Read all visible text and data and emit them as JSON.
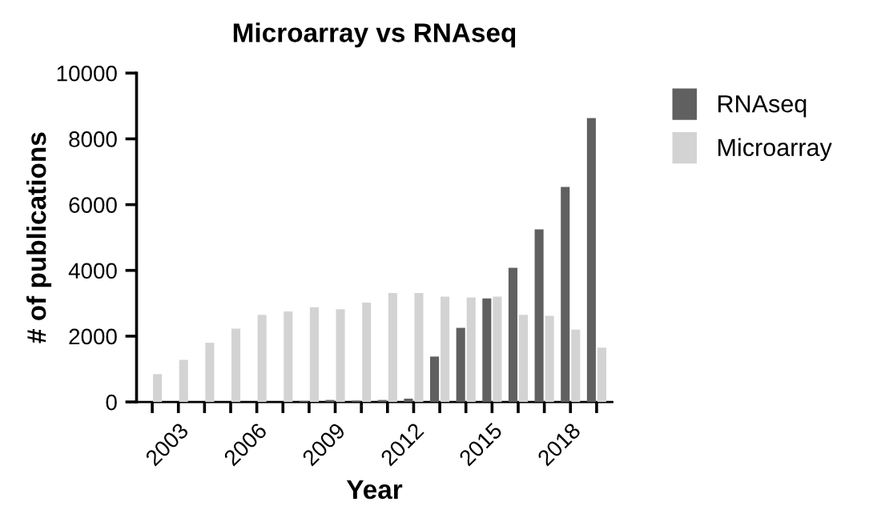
{
  "chart_data": {
    "type": "bar",
    "title": "Microarray vs RNAseq",
    "xlabel": "Year",
    "ylabel": "# of publications",
    "categories": [
      null,
      "2003",
      null,
      null,
      "2006",
      null,
      null,
      "2009",
      null,
      null,
      "2012",
      null,
      null,
      "2015",
      null,
      null,
      "2018",
      null
    ],
    "series": [
      {
        "name": "RNAseq",
        "color": "#606060",
        "values": [
          0,
          0,
          0,
          0,
          0,
          0,
          30,
          60,
          40,
          60,
          100,
          1380,
          2250,
          3150,
          4080,
          5250,
          6540,
          8630
        ]
      },
      {
        "name": "Microarray",
        "color": "#d3d3d3",
        "values": [
          850,
          1280,
          1800,
          2230,
          2650,
          2750,
          2880,
          2820,
          3020,
          3310,
          3310,
          3200,
          3180,
          3200,
          2650,
          2620,
          2200,
          1650
        ]
      }
    ],
    "ylim": [
      0,
      10000
    ],
    "yticks": [
      0,
      2000,
      4000,
      6000,
      8000,
      10000
    ],
    "grid": false,
    "legend": "top right"
  }
}
